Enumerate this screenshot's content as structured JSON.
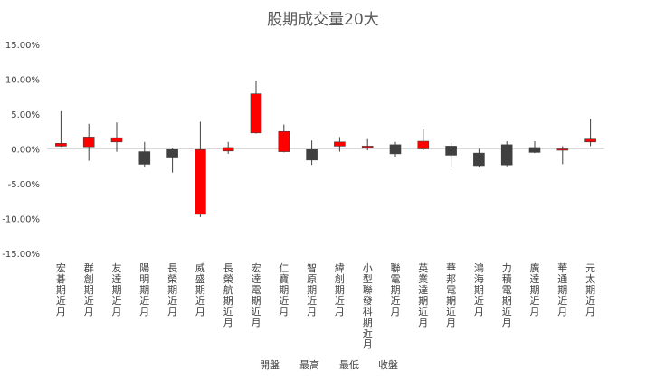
{
  "chart_data": {
    "type": "candlestick",
    "title": "股期成交量20大",
    "xlabel": "",
    "ylabel": "",
    "ylim": [
      -0.15,
      0.15
    ],
    "yticks": [
      -0.15,
      -0.1,
      -0.05,
      0.0,
      0.05,
      0.1,
      0.15
    ],
    "ytick_labels": [
      "-15.00%",
      "-10.00%",
      "-5.00%",
      "0.00%",
      "5.00%",
      "10.00%",
      "15.00%"
    ],
    "grid": false,
    "legend": [
      "開盤",
      "最高",
      "最低",
      "收盤"
    ],
    "legend_position": "bottom",
    "colors": {
      "up": "#ff0000",
      "down": "#404040",
      "wick": "#404040",
      "axis": "#d9d9d9"
    },
    "categories": [
      "宏碁期近月",
      "群創期近月",
      "友達期近月",
      "陽明期近月",
      "長榮期近月",
      "威盛期近月",
      "長榮航期近月",
      "宏達電期近月",
      "仁寶期近月",
      "智原期近月",
      "緯創期近月",
      "小型聯發科期近月",
      "聯電期近月",
      "英業達期近月",
      "華邦電期近月",
      "鴻海期近月",
      "力積電期近月",
      "廣達期近月",
      "華通期近月",
      "元太期近月"
    ],
    "series": [
      {
        "name": "開盤",
        "values": [
          0.004,
          0.003,
          0.01,
          -0.004,
          -0.001,
          -0.094,
          -0.003,
          0.023,
          -0.004,
          -0.001,
          0.004,
          0.002,
          0.006,
          0.0,
          0.004,
          -0.006,
          0.006,
          0.002,
          -0.001,
          0.01
        ]
      },
      {
        "name": "最高",
        "values": [
          0.054,
          0.036,
          0.038,
          0.01,
          0.001,
          0.039,
          0.01,
          0.098,
          0.035,
          0.012,
          0.017,
          0.014,
          0.01,
          0.029,
          0.009,
          0.0,
          0.011,
          0.011,
          0.004,
          0.043
        ]
      },
      {
        "name": "最低",
        "values": [
          0.003,
          -0.017,
          -0.004,
          -0.026,
          -0.034,
          -0.098,
          -0.007,
          0.022,
          -0.005,
          -0.023,
          -0.004,
          -0.002,
          -0.011,
          -0.002,
          -0.026,
          -0.026,
          -0.025,
          -0.006,
          -0.022,
          0.004
        ]
      },
      {
        "name": "收盤",
        "values": [
          0.008,
          0.017,
          0.016,
          -0.022,
          -0.013,
          -0.001,
          0.002,
          0.079,
          0.025,
          -0.016,
          0.01,
          0.004,
          -0.007,
          0.011,
          -0.009,
          -0.024,
          -0.023,
          -0.005,
          0.0,
          0.014
        ]
      }
    ]
  }
}
